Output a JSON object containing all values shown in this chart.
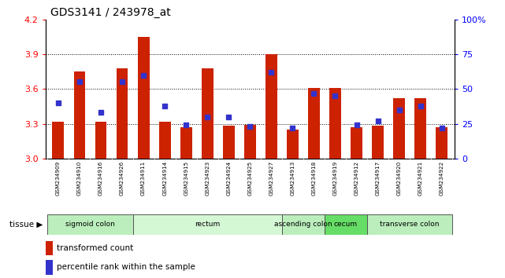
{
  "title": "GDS3141 / 243978_at",
  "samples": [
    "GSM234909",
    "GSM234910",
    "GSM234916",
    "GSM234926",
    "GSM234911",
    "GSM234914",
    "GSM234915",
    "GSM234923",
    "GSM234924",
    "GSM234925",
    "GSM234927",
    "GSM234913",
    "GSM234918",
    "GSM234919",
    "GSM234912",
    "GSM234917",
    "GSM234920",
    "GSM234921",
    "GSM234922"
  ],
  "bar_values": [
    3.32,
    3.75,
    3.32,
    3.78,
    4.05,
    3.32,
    3.27,
    3.78,
    3.28,
    3.29,
    3.9,
    3.25,
    3.61,
    3.61,
    3.27,
    3.28,
    3.52,
    3.52,
    3.27
  ],
  "blue_pcts": [
    40,
    55,
    33,
    55,
    60,
    38,
    24,
    30,
    30,
    23,
    62,
    22,
    47,
    45,
    24,
    27,
    35,
    38,
    22
  ],
  "ymin": 3.0,
  "ymax": 4.2,
  "y2min": 0,
  "y2max": 100,
  "yticks": [
    3.0,
    3.3,
    3.6,
    3.9,
    4.2
  ],
  "y2ticks": [
    0,
    25,
    50,
    75,
    100
  ],
  "gridlines": [
    3.3,
    3.6,
    3.9
  ],
  "bar_color": "#cc2200",
  "blue_color": "#3333cc",
  "sample_bg": "#d8d8d8",
  "tissues": [
    {
      "label": "sigmoid colon",
      "start": 0,
      "end": 4,
      "color": "#bbeebc"
    },
    {
      "label": "rectum",
      "start": 4,
      "end": 11,
      "color": "#d4f7d4"
    },
    {
      "label": "ascending colon",
      "start": 11,
      "end": 13,
      "color": "#bbeebc"
    },
    {
      "label": "cecum",
      "start": 13,
      "end": 15,
      "color": "#66dd66"
    },
    {
      "label": "transverse colon",
      "start": 15,
      "end": 19,
      "color": "#bbeebc"
    }
  ],
  "legend_bar": "transformed count",
  "legend_blue": "percentile rank within the sample",
  "bar_width": 0.55
}
